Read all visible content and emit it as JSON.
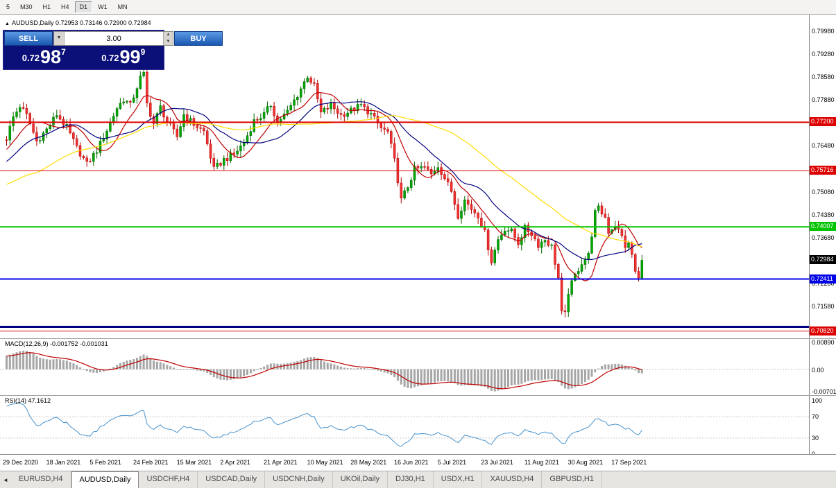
{
  "toolbar": {
    "timeframes": [
      {
        "label": "5",
        "active": false
      },
      {
        "label": "M30",
        "active": false
      },
      {
        "label": "H1",
        "active": false
      },
      {
        "label": "H4",
        "active": false
      },
      {
        "label": "D1",
        "active": true
      },
      {
        "label": "W1",
        "active": false
      },
      {
        "label": "MN",
        "active": false
      }
    ]
  },
  "chart_header": {
    "marker": "▲",
    "text": "AUDUSD,Daily 0.72953 0.73146 0.72900 0.72984"
  },
  "trade_panel": {
    "sell_label": "SELL",
    "buy_label": "BUY",
    "volume": "3.00",
    "bid": {
      "prefix": "0.72",
      "big": "98",
      "sup": "7"
    },
    "ask": {
      "prefix": "0.72",
      "big": "99",
      "sup": "9"
    }
  },
  "panels": {
    "macd_header": "MACD(12,26,9) -0.001752 -0.001031",
    "rsi_header": "RSI(14) 47.1612"
  },
  "tabs": {
    "items": [
      {
        "label": "EURUSD,H4",
        "active": false
      },
      {
        "label": "AUDUSD,Daily",
        "active": true
      },
      {
        "label": "USDCHF,H4",
        "active": false
      },
      {
        "label": "USDCAD,Daily",
        "active": false
      },
      {
        "label": "USDCNH,Daily",
        "active": false
      },
      {
        "label": "UKOil,Daily",
        "active": false
      },
      {
        "label": "DJ30,H1",
        "active": false
      },
      {
        "label": "USDX,H1",
        "active": false
      },
      {
        "label": "XAUUSD,H4",
        "active": false
      },
      {
        "label": "GBPUSD,H1",
        "active": false
      }
    ],
    "scroll_left_icon": "◄"
  },
  "chart_data": {
    "type": "candlestick",
    "symbol": "AUDUSD",
    "timeframe": "Daily",
    "current_bar": {
      "open": 0.72953,
      "high": 0.73146,
      "low": 0.729,
      "close": 0.72984
    },
    "bid": 0.72987,
    "ask": 0.72999,
    "total_bars": 191,
    "pre_trend": {
      "bars": 40,
      "start": 0.739
    },
    "keyframes": [
      [
        0,
        0.7672
      ],
      [
        2,
        0.7736
      ],
      [
        4,
        0.777
      ],
      [
        6,
        0.7742
      ],
      [
        9,
        0.7662
      ],
      [
        12,
        0.7698
      ],
      [
        15,
        0.7744
      ],
      [
        18,
        0.7704
      ],
      [
        21,
        0.7642
      ],
      [
        24,
        0.7592
      ],
      [
        27,
        0.7634
      ],
      [
        30,
        0.7696
      ],
      [
        33,
        0.7764
      ],
      [
        35,
        0.779
      ],
      [
        37,
        0.7772
      ],
      [
        40,
        0.7856
      ],
      [
        41,
        0.7866
      ],
      [
        42,
        0.7776
      ],
      [
        44,
        0.7716
      ],
      [
        46,
        0.7766
      ],
      [
        48,
        0.7722
      ],
      [
        51,
        0.7676
      ],
      [
        53,
        0.7744
      ],
      [
        56,
        0.7714
      ],
      [
        59,
        0.7692
      ],
      [
        62,
        0.7576
      ],
      [
        65,
        0.7606
      ],
      [
        68,
        0.7622
      ],
      [
        71,
        0.7658
      ],
      [
        74,
        0.7724
      ],
      [
        77,
        0.7744
      ],
      [
        79,
        0.7774
      ],
      [
        81,
        0.7722
      ],
      [
        84,
        0.7752
      ],
      [
        87,
        0.7804
      ],
      [
        90,
        0.7862
      ],
      [
        92,
        0.783
      ],
      [
        94,
        0.7748
      ],
      [
        97,
        0.7772
      ],
      [
        100,
        0.7742
      ],
      [
        103,
        0.7756
      ],
      [
        106,
        0.7772
      ],
      [
        109,
        0.7744
      ],
      [
        112,
        0.7702
      ],
      [
        114,
        0.769
      ],
      [
        116,
        0.7602
      ],
      [
        117,
        0.7544
      ],
      [
        118,
        0.7482
      ],
      [
        120,
        0.7524
      ],
      [
        122,
        0.7576
      ],
      [
        125,
        0.7582
      ],
      [
        127,
        0.756
      ],
      [
        129,
        0.7588
      ],
      [
        131,
        0.755
      ],
      [
        133,
        0.751
      ],
      [
        135,
        0.7436
      ],
      [
        137,
        0.7482
      ],
      [
        139,
        0.7456
      ],
      [
        141,
        0.7436
      ],
      [
        143,
        0.7382
      ],
      [
        145,
        0.7296
      ],
      [
        147,
        0.7362
      ],
      [
        149,
        0.7396
      ],
      [
        151,
        0.7386
      ],
      [
        153,
        0.7352
      ],
      [
        155,
        0.7396
      ],
      [
        157,
        0.738
      ],
      [
        159,
        0.7346
      ],
      [
        161,
        0.7362
      ],
      [
        163,
        0.734
      ],
      [
        164,
        0.7292
      ],
      [
        165,
        0.7244
      ],
      [
        166,
        0.7136
      ],
      [
        167,
        0.7132
      ],
      [
        168,
        0.7202
      ],
      [
        170,
        0.7252
      ],
      [
        172,
        0.7292
      ],
      [
        174,
        0.7314
      ],
      [
        175,
        0.7378
      ],
      [
        176,
        0.7444
      ],
      [
        177,
        0.7456
      ],
      [
        179,
        0.743
      ],
      [
        180,
        0.7386
      ],
      [
        182,
        0.7406
      ],
      [
        184,
        0.737
      ],
      [
        185,
        0.7342
      ],
      [
        186,
        0.7346
      ],
      [
        187,
        0.7316
      ],
      [
        188,
        0.7262
      ],
      [
        189,
        0.724
      ],
      [
        190,
        0.72984
      ]
    ],
    "price_axis": {
      "labels": [
        "0.79980",
        "0.79280",
        "0.78580",
        "0.77880",
        "0.77180",
        "0.76480",
        "0.75780",
        "0.75080",
        "0.74380",
        "0.73680",
        "0.72980",
        "0.72280",
        "0.71580",
        "0.70880"
      ]
    },
    "levels": [
      {
        "id": "resistance-upper",
        "value": 0.772,
        "label": "0.77200",
        "color": "#dd0000",
        "line_width": 2
      },
      {
        "id": "resistance-mid",
        "value": 0.75716,
        "label": "0.75716",
        "color": "#dd0000",
        "line_width": 1
      },
      {
        "id": "support-green",
        "value": 0.74007,
        "label": "0.74007",
        "color": "#00c400",
        "line_width": 2
      },
      {
        "id": "support-blue",
        "value": 0.72411,
        "label": "0.72411",
        "color": "#0000e6",
        "line_width": 2
      },
      {
        "id": "band-navy",
        "value": 0.7095,
        "label": "",
        "color": "#000080",
        "line_width": 3
      },
      {
        "id": "support-lower",
        "value": 0.7082,
        "label": "0.70820",
        "color": "#dd0000",
        "line_width": 1
      }
    ],
    "current_price_tag": {
      "value": 0.72984,
      "label": "0.72984",
      "color": "#000000"
    },
    "x_axis": {
      "labels": [
        {
          "text": "29 Dec 2020",
          "bar": 0
        },
        {
          "text": "18 Jan 2021",
          "bar": 13
        },
        {
          "text": "5 Feb 2021",
          "bar": 26
        },
        {
          "text": "24 Feb 2021",
          "bar": 39
        },
        {
          "text": "15 Mar 2021",
          "bar": 52
        },
        {
          "text": "2 Apr 2021",
          "bar": 65
        },
        {
          "text": "21 Apr 2021",
          "bar": 78
        },
        {
          "text": "10 May 2021",
          "bar": 91
        },
        {
          "text": "28 May 2021",
          "bar": 104
        },
        {
          "text": "16 Jun 2021",
          "bar": 117
        },
        {
          "text": "5 Jul 2021",
          "bar": 130
        },
        {
          "text": "23 Jul 2021",
          "bar": 143
        },
        {
          "text": "11 Aug 2021",
          "bar": 156
        },
        {
          "text": "30 Aug 2021",
          "bar": 169
        },
        {
          "text": "17 Sep 2021",
          "bar": 182
        }
      ]
    },
    "moving_averages": [
      {
        "period": 10,
        "color": "#c00000"
      },
      {
        "period": 21,
        "color": "#000080"
      },
      {
        "period": 50,
        "color": "#ffdc00"
      }
    ],
    "macd": {
      "fast": 12,
      "slow": 26,
      "signal": 9,
      "values": [
        -0.001752,
        -0.001031
      ],
      "axis_labels": [
        {
          "text": "0.00890",
          "value": 0.0089
        },
        {
          "text": "0.00",
          "value": 0
        },
        {
          "text": "-0.00701",
          "value": -0.00701
        }
      ]
    },
    "rsi": {
      "period": 14,
      "value": 47.1612,
      "levels": [
        70,
        30
      ],
      "axis_labels": [
        {
          "text": "100",
          "value": 100
        },
        {
          "text": "70",
          "value": 70
        },
        {
          "text": "30",
          "value": 30
        },
        {
          "text": "0",
          "value": 0
        }
      ]
    },
    "colors": {
      "up": "#00a800",
      "up_border": "#006400",
      "down": "#f23232",
      "down_border": "#b00000",
      "macd_hist": "#a6a6a6",
      "macd_signal": "#c00000",
      "rsi_line": "#4893ce"
    }
  }
}
